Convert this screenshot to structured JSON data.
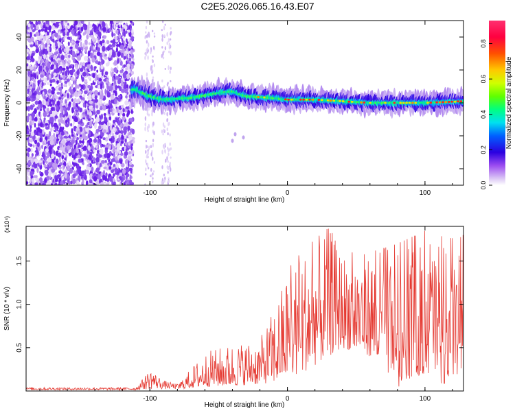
{
  "title": "C2E5.2026.065.16.43.E07",
  "chart_data": [
    {
      "type": "heatmap",
      "title": "C2E5.2026.065.16.43.E07",
      "xlabel": "Height of straight line (km)",
      "ylabel": "Frequency (Hz)",
      "xlim": [
        -190,
        128
      ],
      "ylim": [
        -50,
        50
      ],
      "x_ticks": [
        -100,
        0,
        100
      ],
      "x_tick_labels": [
        "-100",
        "0",
        "100"
      ],
      "y_ticks": [
        -40,
        -20,
        0,
        20,
        40
      ],
      "y_tick_labels": [
        "-40",
        "-20",
        "0",
        "20",
        "40"
      ],
      "colorbar": {
        "label": "Normalized spectral amplitude",
        "range": [
          0,
          0.93
        ],
        "ticks": [
          0.0,
          0.2,
          0.4,
          0.6,
          0.8
        ],
        "tick_labels": [
          "0.0",
          "0.2",
          "0.4",
          "0.6",
          "0.8"
        ]
      },
      "features": {
        "noise_region_x": [
          -190,
          -112
        ],
        "signal_band_center_hz": [
          {
            "x": -110,
            "y": 8
          },
          {
            "x": -100,
            "y": 4
          },
          {
            "x": -90,
            "y": 2
          },
          {
            "x": -70,
            "y": 3
          },
          {
            "x": -50,
            "y": 6
          },
          {
            "x": -40,
            "y": 7
          },
          {
            "x": -30,
            "y": 4
          },
          {
            "x": -10,
            "y": 3
          },
          {
            "x": 0,
            "y": 2
          },
          {
            "x": 20,
            "y": 2
          },
          {
            "x": 40,
            "y": 1
          },
          {
            "x": 60,
            "y": 0
          },
          {
            "x": 80,
            "y": 0
          },
          {
            "x": 100,
            "y": 0
          },
          {
            "x": 128,
            "y": 1
          }
        ]
      }
    },
    {
      "type": "line",
      "xlabel": "Height of straight line (km)",
      "ylabel": "SNR (10 * v/v)",
      "y_scale_label": "(x10⁴)",
      "xlim": [
        -190,
        128
      ],
      "ylim": [
        0,
        1.9
      ],
      "x_ticks": [
        -100,
        0,
        100
      ],
      "x_tick_labels": [
        "-100",
        "0",
        "100"
      ],
      "y_ticks": [
        0.5,
        1.0,
        1.5
      ],
      "y_tick_labels": [
        "0.5",
        "1.0",
        "1.5"
      ],
      "series": [
        {
          "name": "SNR",
          "color": "#e53a32",
          "envelope": [
            {
              "x": -190,
              "lo": 0.01,
              "hi": 0.04
            },
            {
              "x": -110,
              "lo": 0.01,
              "hi": 0.04
            },
            {
              "x": -100,
              "lo": 0.02,
              "hi": 0.25
            },
            {
              "x": -90,
              "lo": 0.02,
              "hi": 0.12
            },
            {
              "x": -80,
              "lo": 0.02,
              "hi": 0.08
            },
            {
              "x": -60,
              "lo": 0.05,
              "hi": 0.45
            },
            {
              "x": -40,
              "lo": 0.06,
              "hi": 0.55
            },
            {
              "x": -20,
              "lo": 0.08,
              "hi": 0.6
            },
            {
              "x": -10,
              "lo": 0.1,
              "hi": 0.95
            },
            {
              "x": 0,
              "lo": 0.15,
              "hi": 1.4
            },
            {
              "x": 10,
              "lo": 0.2,
              "hi": 1.6
            },
            {
              "x": 20,
              "lo": 0.3,
              "hi": 1.75
            },
            {
              "x": 30,
              "lo": 0.4,
              "hi": 1.9
            },
            {
              "x": 40,
              "lo": 0.5,
              "hi": 1.6
            },
            {
              "x": 60,
              "lo": 0.4,
              "hi": 1.6
            },
            {
              "x": 80,
              "lo": 0.1,
              "hi": 1.7
            },
            {
              "x": 100,
              "lo": 0.2,
              "hi": 1.85
            },
            {
              "x": 128,
              "lo": 0.15,
              "hi": 1.8
            }
          ]
        }
      ]
    }
  ]
}
